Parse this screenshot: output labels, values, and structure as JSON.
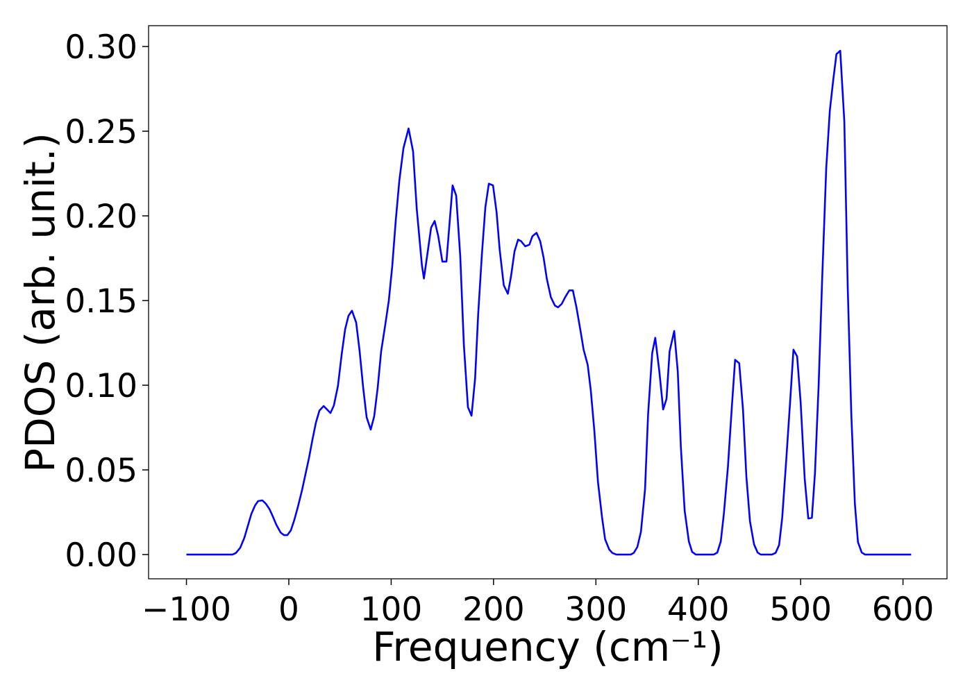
{
  "chart_data": {
    "type": "line",
    "xlabel": "Frequency (cm⁻¹)",
    "ylabel": "PDOS (arb. unit.)",
    "xlim": [
      -137,
      643
    ],
    "ylim": [
      -0.0143,
      0.3123
    ],
    "xticks": [
      {
        "value": -100,
        "label": "−100"
      },
      0,
      100,
      200,
      300,
      400,
      500,
      600
    ],
    "yticks": [
      {
        "value": 0,
        "label": "0.00"
      },
      {
        "value": 0.05,
        "label": "0.05"
      },
      {
        "value": 0.1,
        "label": "0.10"
      },
      {
        "value": 0.15,
        "label": "0.15"
      },
      {
        "value": 0.2,
        "label": "0.20"
      },
      {
        "value": 0.25,
        "label": "0.25"
      },
      {
        "value": 0.3,
        "label": "0.30"
      }
    ],
    "series": [
      {
        "color": "#0000ff",
        "x": [
          -100,
          -55,
          -51.6,
          -47.5,
          -43.4,
          -40,
          -36.6,
          -33,
          -30,
          -25.8,
          -22.4,
          -19,
          -15.6,
          -12.2,
          -8,
          -4.7,
          -1.4,
          2,
          5.4,
          8.8,
          12.9,
          16.3,
          19.7,
          23,
          26.5,
          29.9,
          34,
          37.3,
          40.7,
          44,
          48,
          51.6,
          55,
          58.3,
          61.7,
          65.8,
          69.2,
          72.6,
          76,
          80,
          83.4,
          86.8,
          90.2,
          94.3,
          97.7,
          101,
          104.5,
          108,
          112,
          117,
          121.4,
          125,
          130,
          132,
          139,
          142.5,
          146,
          150,
          154,
          160,
          163.5,
          167.5,
          171,
          175,
          178.5,
          182,
          185,
          188.6,
          192,
          195.4,
          199.5,
          203,
          206,
          210,
          214,
          217,
          220.5,
          224,
          227,
          231,
          235,
          238,
          242,
          245.6,
          249,
          252,
          256,
          260,
          263,
          266.6,
          270,
          274,
          277.5,
          281,
          285,
          288,
          292,
          295,
          298.5,
          302,
          306,
          309,
          313,
          316,
          320,
          334,
          337,
          340.5,
          344,
          348,
          351,
          355,
          358,
          362,
          365.7,
          369,
          372,
          376.5,
          380,
          383,
          386.7,
          390.8,
          394,
          397.6,
          415,
          418.6,
          422,
          425,
          429,
          433,
          436,
          440,
          443.7,
          447,
          450.5,
          454.5,
          458,
          461,
          472,
          475.6,
          479,
          482,
          485.7,
          490,
          493,
          496.6,
          500,
          504,
          507.5,
          511,
          514,
          517.6,
          521,
          525,
          528.5,
          532,
          535,
          538.7,
          542.7,
          546,
          549.5,
          553,
          556,
          559.7,
          563,
          608
        ],
        "values": [
          0,
          0,
          0.001,
          0.004,
          0.01,
          0.017,
          0.024,
          0.029,
          0.0316,
          0.032,
          0.03,
          0.027,
          0.0225,
          0.0176,
          0.013,
          0.0115,
          0.0115,
          0.0143,
          0.0205,
          0.028,
          0.038,
          0.0475,
          0.057,
          0.0676,
          0.078,
          0.085,
          0.0877,
          0.0857,
          0.0836,
          0.088,
          0.0996,
          0.118,
          0.133,
          0.141,
          0.144,
          0.137,
          0.12,
          0.0988,
          0.0811,
          0.0738,
          0.0816,
          0.0984,
          0.12,
          0.136,
          0.15,
          0.17,
          0.1975,
          0.221,
          0.24,
          0.2516,
          0.238,
          0.204,
          0.171,
          0.163,
          0.193,
          0.197,
          0.188,
          0.173,
          0.173,
          0.218,
          0.212,
          0.176,
          0.124,
          0.087,
          0.082,
          0.104,
          0.142,
          0.177,
          0.205,
          0.219,
          0.218,
          0.202,
          0.18,
          0.159,
          0.154,
          0.164,
          0.179,
          0.186,
          0.185,
          0.182,
          0.183,
          0.188,
          0.19,
          0.185,
          0.175,
          0.163,
          0.152,
          0.147,
          0.146,
          0.148,
          0.152,
          0.156,
          0.156,
          0.146,
          0.132,
          0.121,
          0.112,
          0.097,
          0.073,
          0.043,
          0.022,
          0.009,
          0.003,
          0.001,
          0,
          0,
          0.001,
          0.0045,
          0.0135,
          0.0385,
          0.083,
          0.119,
          0.128,
          0.108,
          0.0857,
          0.092,
          0.12,
          0.132,
          0.108,
          0.0635,
          0.026,
          0.0078,
          0.0016,
          0,
          0,
          0.0012,
          0.0078,
          0.024,
          0.052,
          0.089,
          0.115,
          0.113,
          0.0857,
          0.046,
          0.0197,
          0.006,
          0.0012,
          0,
          0,
          0.001,
          0.0057,
          0.0217,
          0.0537,
          0.0926,
          0.121,
          0.117,
          0.09,
          0.0447,
          0.0213,
          0.0217,
          0.048,
          0.1,
          0.162,
          0.228,
          0.262,
          0.281,
          0.2955,
          0.2975,
          0.2557,
          0.158,
          0.083,
          0.03,
          0.0074,
          0.0012,
          0,
          0
        ]
      }
    ]
  }
}
